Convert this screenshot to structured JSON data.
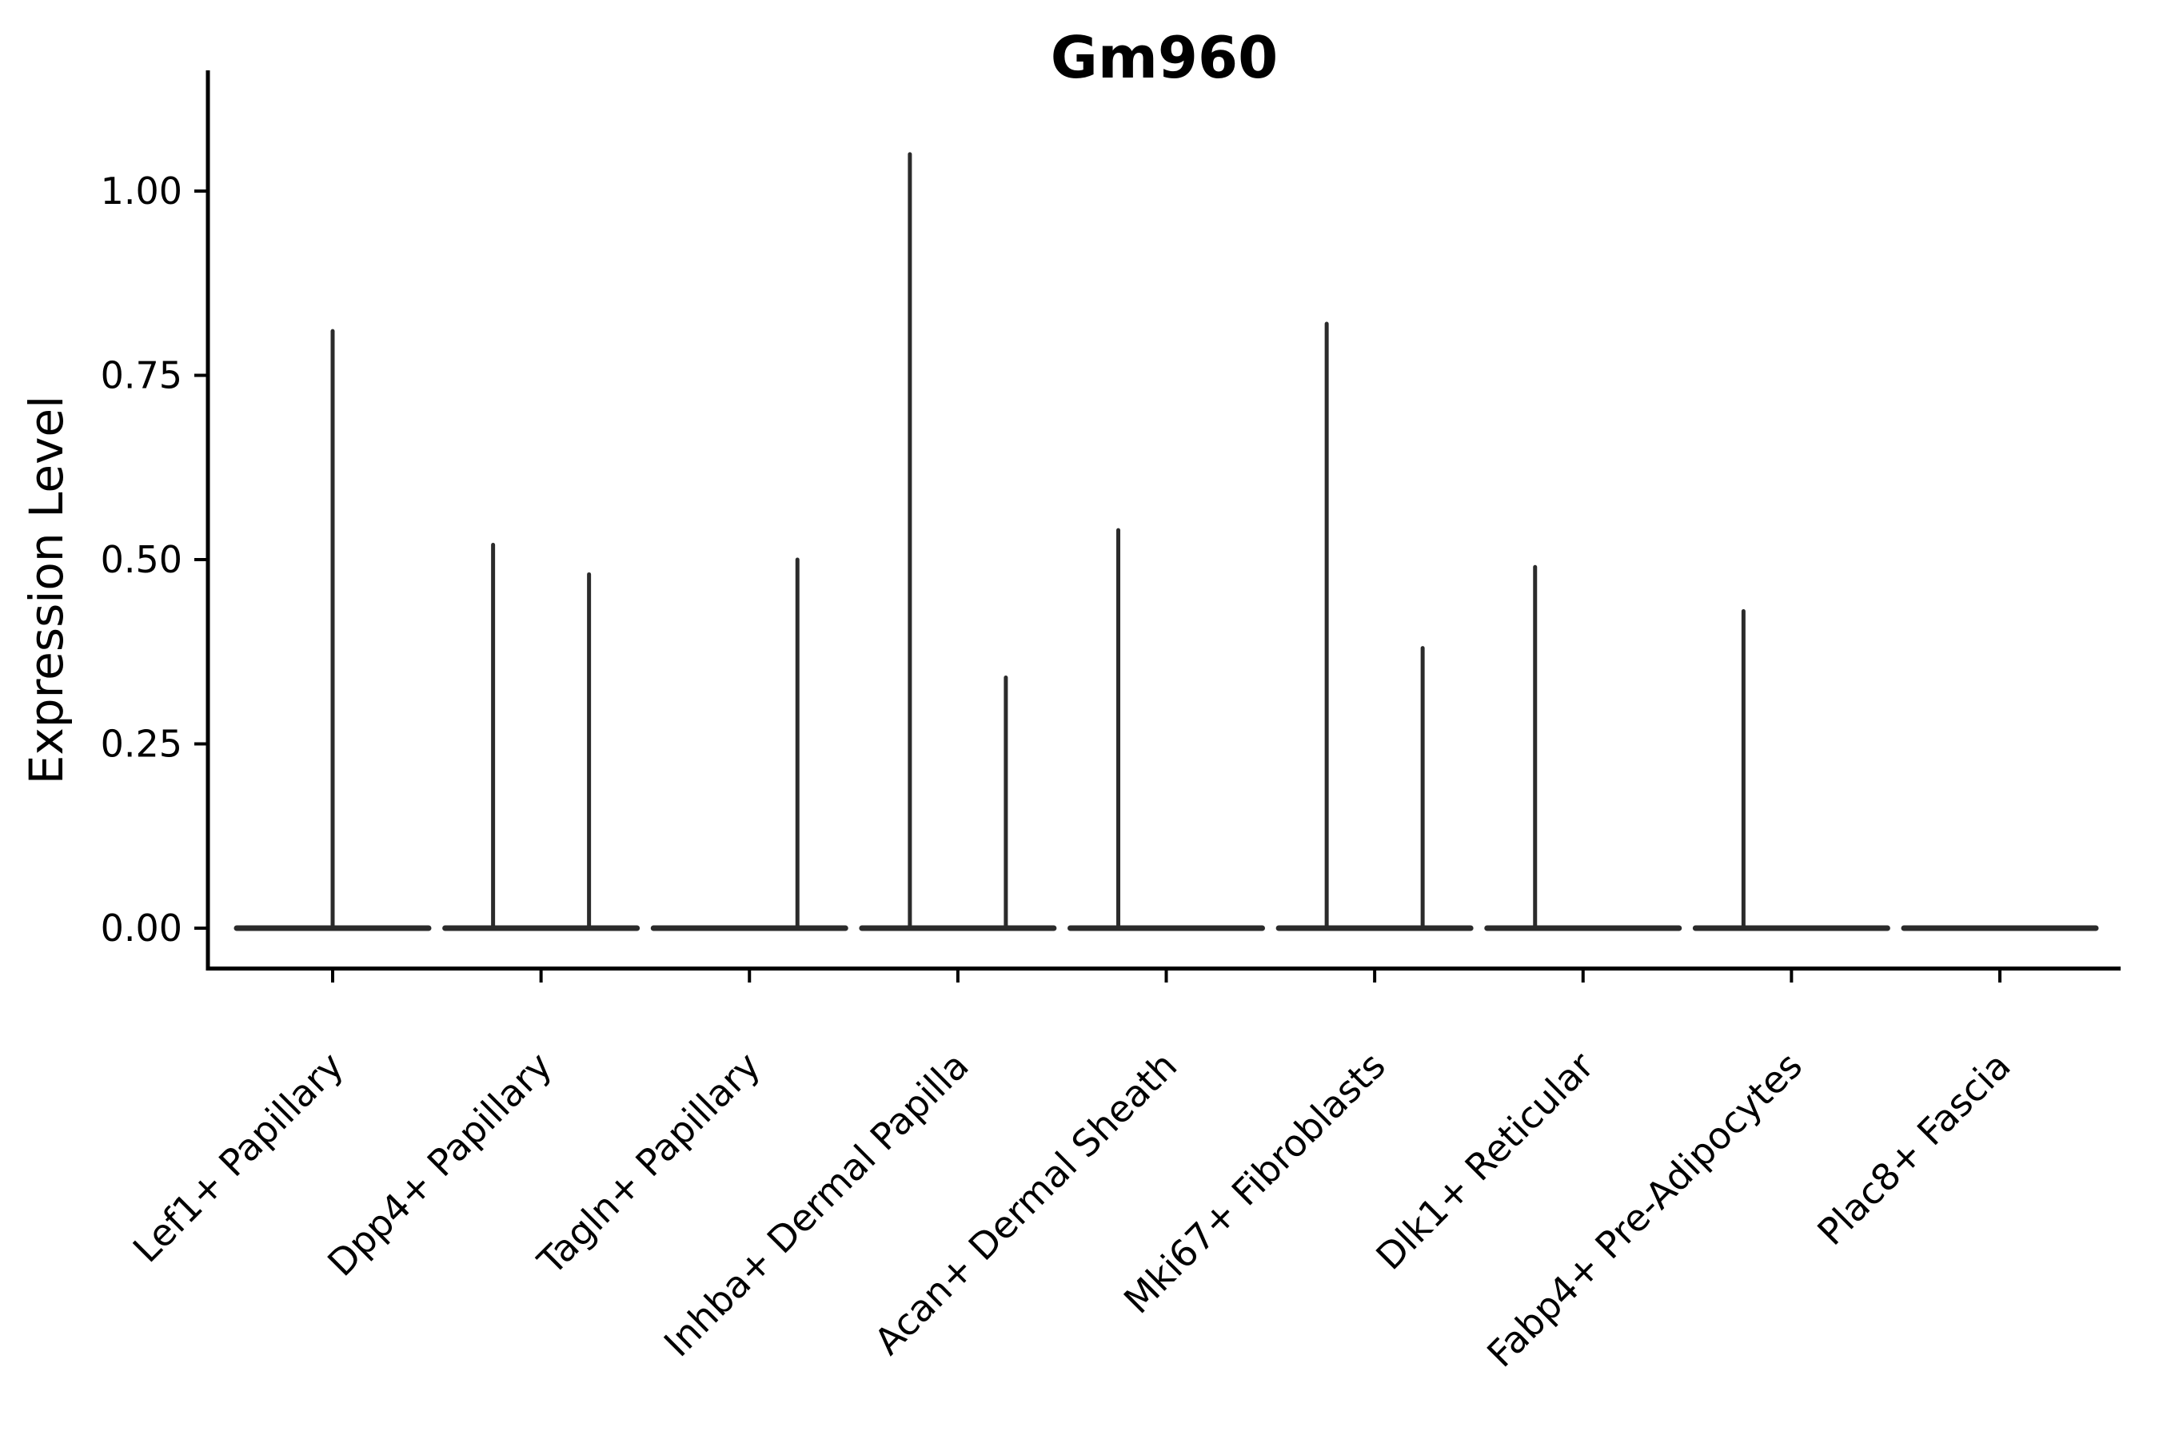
{
  "chart_data": {
    "type": "violin",
    "title": "Gm960",
    "xlabel": "",
    "ylabel": "Expression Level",
    "x_tick_rotation": 45,
    "grid": false,
    "legend": null,
    "background_color": "#ffffff",
    "axis_color": "#000000",
    "violin_color": "#2b2b2b",
    "ylim": [
      -0.05,
      1.16
    ],
    "yticks": [
      0,
      0.25,
      0.5,
      0.75,
      1
    ],
    "ytick_labels": [
      "0.00",
      "0.25",
      "0.50",
      "0.75",
      "1.00"
    ],
    "categories": [
      "Lef1+ Papillary",
      "Dpp4+ Papillary",
      "Tagln+ Papillary",
      "Inhba+ Dermal Papilla",
      "Acan+ Dermal Sheath",
      "Mki67+ Fibroblasts",
      "Dlk1+ Reticular",
      "Fabp4+ Pre-Adipocytes",
      "Plac8+ Fascia"
    ],
    "violins": [
      {
        "category": "Lef1+ Papillary",
        "base_value": 0,
        "spikes": [
          {
            "dodge": 0,
            "max_expression": 0.81
          }
        ]
      },
      {
        "category": "Dpp4+ Papillary",
        "base_value": 0,
        "spikes": [
          {
            "dodge": -1,
            "max_expression": 0.52
          },
          {
            "dodge": 1,
            "max_expression": 0.48
          }
        ]
      },
      {
        "category": "Tagln+ Papillary",
        "base_value": 0,
        "spikes": [
          {
            "dodge": 1,
            "max_expression": 0.5
          }
        ]
      },
      {
        "category": "Inhba+ Dermal Papilla",
        "base_value": 0,
        "spikes": [
          {
            "dodge": -1,
            "max_expression": 1.05
          },
          {
            "dodge": 1,
            "max_expression": 0.34
          }
        ]
      },
      {
        "category": "Acan+ Dermal Sheath",
        "base_value": 0,
        "spikes": [
          {
            "dodge": -1,
            "max_expression": 0.54
          }
        ]
      },
      {
        "category": "Mki67+ Fibroblasts",
        "base_value": 0,
        "spikes": [
          {
            "dodge": -1,
            "max_expression": 0.82
          },
          {
            "dodge": 1,
            "max_expression": 0.38
          }
        ]
      },
      {
        "category": "Dlk1+ Reticular",
        "base_value": 0,
        "spikes": [
          {
            "dodge": -1,
            "max_expression": 0.49
          }
        ]
      },
      {
        "category": "Fabp4+ Pre-Adipocytes",
        "base_value": 0,
        "spikes": [
          {
            "dodge": -1,
            "max_expression": 0.43
          }
        ]
      },
      {
        "category": "Plac8+ Fascia",
        "base_value": 0,
        "spikes": []
      }
    ]
  }
}
